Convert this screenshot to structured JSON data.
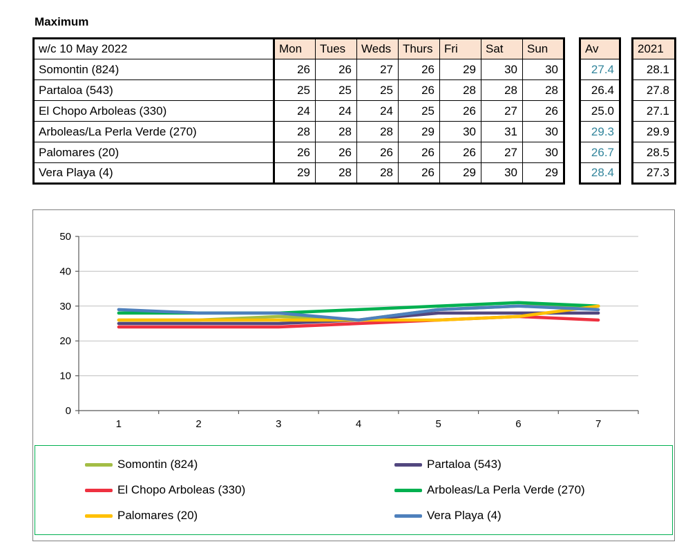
{
  "page": {
    "title": "Maximum"
  },
  "table": {
    "header": {
      "label": "w/c 10 May 2022",
      "days": [
        "Mon",
        "Tues",
        "Weds",
        "Thurs",
        "Fri",
        "Sat",
        "Sun"
      ],
      "av": "Av",
      "prev": "2021"
    },
    "rows": [
      {
        "name": "Somontin (824)",
        "values": [
          26,
          26,
          27,
          26,
          29,
          30,
          30
        ],
        "av": "27.4",
        "av_color": "#31849B",
        "prev": "28.1"
      },
      {
        "name": "Partaloa (543)",
        "values": [
          25,
          25,
          25,
          26,
          28,
          28,
          28
        ],
        "av": "26.4",
        "av_color": "#000000",
        "prev": "27.8"
      },
      {
        "name": "El Chopo  Arboleas (330)",
        "values": [
          24,
          24,
          24,
          25,
          26,
          27,
          26
        ],
        "av": "25.0",
        "av_color": "#000000",
        "prev": "27.1"
      },
      {
        "name": "Arboleas/La Perla Verde (270)",
        "values": [
          28,
          28,
          28,
          29,
          30,
          31,
          30
        ],
        "av": "29.3",
        "av_color": "#31849B",
        "prev": "29.9"
      },
      {
        "name": "Palomares (20)",
        "values": [
          26,
          26,
          26,
          26,
          26,
          27,
          30
        ],
        "av": "26.7",
        "av_color": "#31849B",
        "prev": "28.5"
      },
      {
        "name": "Vera Playa (4)",
        "values": [
          29,
          28,
          28,
          26,
          29,
          30,
          29
        ],
        "av": "28.4",
        "av_color": "#31849B",
        "prev": "27.3"
      }
    ]
  },
  "chart_data": {
    "type": "line",
    "x": [
      1,
      2,
      3,
      4,
      5,
      6,
      7
    ],
    "series": [
      {
        "name": "Somontin (824)",
        "color": "#A3BD45",
        "values": [
          26,
          26,
          27,
          26,
          29,
          30,
          30
        ]
      },
      {
        "name": "Partaloa (543)",
        "color": "#52477F",
        "values": [
          25,
          25,
          25,
          26,
          28,
          28,
          28
        ]
      },
      {
        "name": "El Chopo  Arboleas (330)",
        "color": "#EE3140",
        "values": [
          24,
          24,
          24,
          25,
          26,
          27,
          26
        ]
      },
      {
        "name": "Arboleas/La Perla Verde (270)",
        "color": "#00B050",
        "values": [
          28,
          28,
          28,
          29,
          30,
          31,
          30
        ]
      },
      {
        "name": "Palomares (20)",
        "color": "#FFC000",
        "values": [
          26,
          26,
          26,
          26,
          26,
          27,
          30
        ]
      },
      {
        "name": "Vera Playa (4)",
        "color": "#4E80BC",
        "values": [
          29,
          28,
          28,
          26,
          29,
          30,
          29
        ]
      }
    ],
    "title": "",
    "xlabel": "",
    "ylabel": "",
    "ylim": [
      0,
      50
    ],
    "yticks": [
      0,
      10,
      20,
      30,
      40,
      50
    ],
    "grid": true,
    "legend_position": "bottom",
    "colors": {
      "axis": "#595959",
      "gridline": "#BFBFBF",
      "legend_border": "#00B050"
    }
  }
}
